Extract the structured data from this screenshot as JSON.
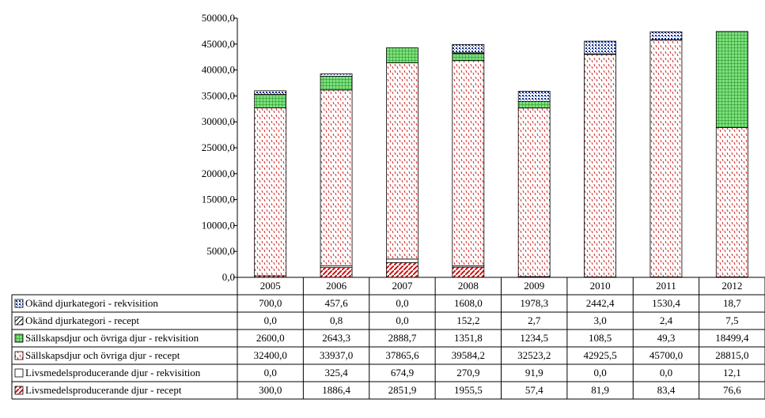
{
  "chart_data": {
    "type": "bar",
    "stacked": true,
    "categories": [
      "2005",
      "2006",
      "2007",
      "2008",
      "2009",
      "2010",
      "2011",
      "2012"
    ],
    "ylim": [
      0,
      50000
    ],
    "ytick_step": 5000,
    "ytick_labels": [
      "0,0",
      "5000,0",
      "10000,0",
      "15000,0",
      "20000,0",
      "25000,0",
      "30000,0",
      "35000,0",
      "40000,0",
      "45000,0",
      "50000,0"
    ],
    "grid": false,
    "title": "",
    "xlabel": "",
    "ylabel": "",
    "series": [
      {
        "name": "Okänd djurkategori - rekvisition",
        "pattern": "dots-blue",
        "colors": {
          "fg": "#0a2a8a",
          "bg": "#ffffff"
        },
        "values": [
          700.0,
          457.6,
          0.0,
          1608.0,
          1978.3,
          2442.4,
          1530.4,
          18.7
        ],
        "labels": [
          "700,0",
          "457,6",
          "0,0",
          "1608,0",
          "1978,3",
          "2442,4",
          "1530,4",
          "18,7"
        ]
      },
      {
        "name": "Okänd djurkategori - recept",
        "pattern": "diag-black",
        "colors": {
          "fg": "#000000",
          "bg": "#ffffff"
        },
        "values": [
          0.0,
          0.8,
          0.0,
          152.2,
          2.7,
          3.0,
          2.4,
          7.5
        ],
        "labels": [
          "0,0",
          "0,8",
          "0,0",
          "152,2",
          "2,7",
          "3,0",
          "2,4",
          "7,5"
        ]
      },
      {
        "name": "Sällskapsdjur och övriga djur - rekvisition",
        "pattern": "grid-green",
        "colors": {
          "fg": "#1a8a1a",
          "bg": "#7ee07e"
        },
        "values": [
          2600.0,
          2643.3,
          2888.7,
          1351.8,
          1234.5,
          108.5,
          49.3,
          18499.4
        ],
        "labels": [
          "2600,0",
          "2643,3",
          "2888,7",
          "1351,8",
          "1234,5",
          "108,5",
          "49,3",
          "18499,4"
        ]
      },
      {
        "name": "Sällskapsdjur och övriga djur - recept",
        "pattern": "dash-red",
        "colors": {
          "fg": "#cc2222",
          "bg": "#ffffff"
        },
        "values": [
          32400.0,
          33937.0,
          37865.6,
          39584.2,
          32523.2,
          42925.5,
          45700.0,
          28815.0
        ],
        "labels": [
          "32400,0",
          "33937,0",
          "37865,6",
          "39584,2",
          "32523,2",
          "42925,5",
          "45700,0",
          "28815,0"
        ]
      },
      {
        "name": "Livsmedelsproducerande djur - rekvisition",
        "pattern": "plain-white",
        "colors": {
          "fg": "#000000",
          "bg": "#ffffff"
        },
        "values": [
          0.0,
          325.4,
          674.9,
          270.9,
          91.9,
          0.0,
          0.0,
          12.1
        ],
        "labels": [
          "0,0",
          "325,4",
          "674,9",
          "270,9",
          "91,9",
          "0,0",
          "0,0",
          "12,1"
        ]
      },
      {
        "name": "Livsmedelsproducerande djur - recept",
        "pattern": "diag-red",
        "colors": {
          "fg": "#cc1111",
          "bg": "#ffffff"
        },
        "values": [
          300.0,
          1886.4,
          2851.9,
          1955.5,
          57.4,
          81.9,
          83.4,
          76.6
        ],
        "labels": [
          "300,0",
          "1886,4",
          "2851,9",
          "1955,5",
          "57,4",
          "81,9",
          "83,4",
          "76,6"
        ]
      }
    ]
  }
}
